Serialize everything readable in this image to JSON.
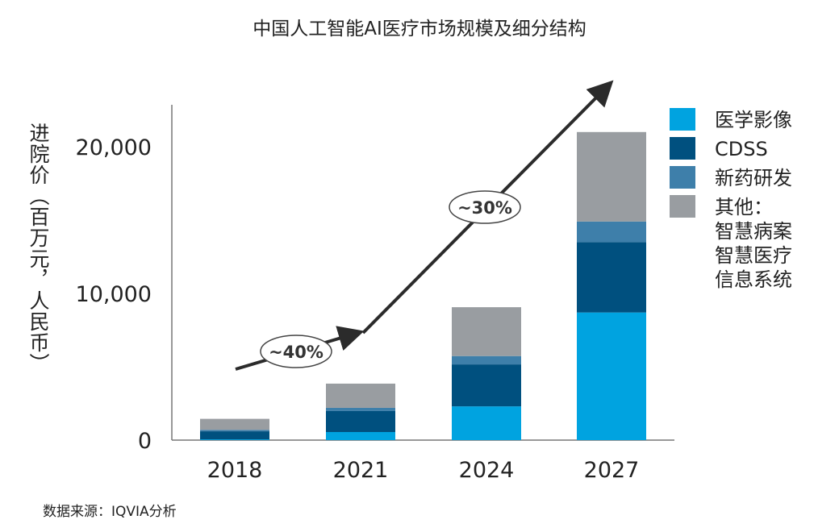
{
  "title": "中国人工智能AI医疗市场规模及细分结构",
  "source": "数据来源：IQVIA分析",
  "chart_data": {
    "type": "bar",
    "stacked": true,
    "title": "中国人工智能AI医疗市场规模及细分结构",
    "ylabel": "进院价（百万元，人民币）",
    "xlabel": "",
    "ylim": [
      0,
      22000
    ],
    "yticks": [
      0,
      10000,
      20000
    ],
    "ytick_labels": [
      "0",
      "10,000",
      "20,000"
    ],
    "grid": false,
    "legend_position": "right",
    "categories": [
      "2018",
      "2021",
      "2024",
      "2027"
    ],
    "series": [
      {
        "name": "医学影像",
        "color": "#00a3e0",
        "values": [
          50,
          550,
          2300,
          8700
        ]
      },
      {
        "name": "CDSS",
        "color": "#00507f",
        "values": [
          550,
          1430,
          2860,
          4800
        ]
      },
      {
        "name": "新药研发",
        "color": "#3e7faa",
        "values": [
          100,
          220,
          570,
          1400
        ]
      },
      {
        "name": "其他：\n智慧病案\n智慧医疗\n信息系统",
        "color": "#999da1",
        "values": [
          750,
          1650,
          3330,
          6100
        ]
      }
    ],
    "annotations": [
      {
        "text": "~40%",
        "from": "2018",
        "to": "2021"
      },
      {
        "text": "~30%",
        "from": "2021",
        "to": "2027"
      }
    ]
  }
}
